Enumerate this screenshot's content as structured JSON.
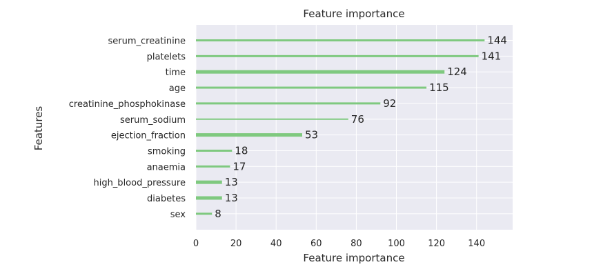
{
  "chart_data": {
    "type": "bar",
    "orientation": "horizontal",
    "title": "Feature importance",
    "xlabel": "Feature importance",
    "ylabel": "Features",
    "xlim": [
      0,
      158
    ],
    "xticks": [
      0,
      20,
      40,
      60,
      80,
      100,
      120,
      140
    ],
    "grid": true,
    "bar_color": "#7fc97f",
    "background_color": "#eaeaf2",
    "categories": [
      "serum_creatinine",
      "platelets",
      "time",
      "age",
      "creatinine_phosphokinase",
      "serum_sodium",
      "ejection_fraction",
      "smoking",
      "anaemia",
      "high_blood_pressure",
      "diabetes",
      "sex"
    ],
    "values": [
      144,
      141,
      124,
      115,
      92,
      76,
      53,
      18,
      17,
      13,
      13,
      8
    ]
  }
}
